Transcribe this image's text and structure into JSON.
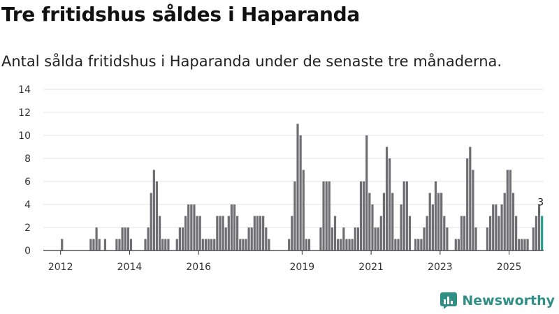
{
  "header": {
    "title": "Tre fritidshus såldes i Haparanda",
    "subtitle": "Antal sålda fritidshus i Haparanda under de senaste tre månaderna."
  },
  "brand": {
    "name": "Newsworthy"
  },
  "colors": {
    "bar": "#6e6e73",
    "highlight": "#2a9d8f",
    "grid": "#e3e3e3",
    "axis": "#333333",
    "brand": "#2f8f87"
  },
  "chart_data": {
    "type": "bar",
    "title": "Tre fritidshus såldes i Haparanda",
    "subtitle": "Antal sålda fritidshus i Haparanda under de senaste tre månaderna.",
    "xlabel": "",
    "ylabel": "",
    "ylim": [
      0,
      14
    ],
    "yticks": [
      0,
      2,
      4,
      6,
      8,
      10,
      12,
      14
    ],
    "x_start": 2011.5,
    "x_end": 2026.0,
    "x_step": 0.0833,
    "xticks": [
      2012,
      2014,
      2016,
      2019,
      2021,
      2023,
      2025
    ],
    "grid": true,
    "values": [
      0,
      0,
      0,
      0,
      0,
      0,
      1,
      0,
      0,
      0,
      0,
      0,
      0,
      0,
      0,
      0,
      1,
      1,
      2,
      1,
      0,
      1,
      0,
      0,
      0,
      1,
      1,
      2,
      2,
      2,
      1,
      0,
      0,
      0,
      0,
      1,
      2,
      5,
      7,
      6,
      3,
      1,
      1,
      1,
      0,
      0,
      1,
      2,
      2,
      3,
      4,
      4,
      4,
      3,
      3,
      1,
      1,
      1,
      1,
      1,
      3,
      3,
      3,
      2,
      3,
      4,
      4,
      3,
      1,
      1,
      1,
      2,
      2,
      3,
      3,
      3,
      3,
      2,
      1,
      0,
      0,
      0,
      0,
      0,
      0,
      1,
      3,
      6,
      11,
      10,
      7,
      1,
      1,
      0,
      0,
      0,
      2,
      6,
      6,
      6,
      2,
      3,
      1,
      1,
      2,
      1,
      1,
      1,
      2,
      2,
      6,
      6,
      10,
      5,
      4,
      2,
      2,
      3,
      5,
      9,
      8,
      5,
      1,
      1,
      4,
      6,
      6,
      3,
      0,
      1,
      1,
      1,
      2,
      3,
      5,
      4,
      6,
      5,
      5,
      3,
      2,
      0,
      0,
      1,
      1,
      3,
      3,
      8,
      9,
      7,
      2,
      0,
      0,
      0,
      2,
      3,
      4,
      4,
      3,
      4,
      5,
      7,
      7,
      5,
      3,
      1,
      1,
      1,
      1,
      0,
      2,
      3,
      4,
      3
    ],
    "highlight_last": true,
    "annotation": {
      "text": "3",
      "target": "last"
    }
  }
}
